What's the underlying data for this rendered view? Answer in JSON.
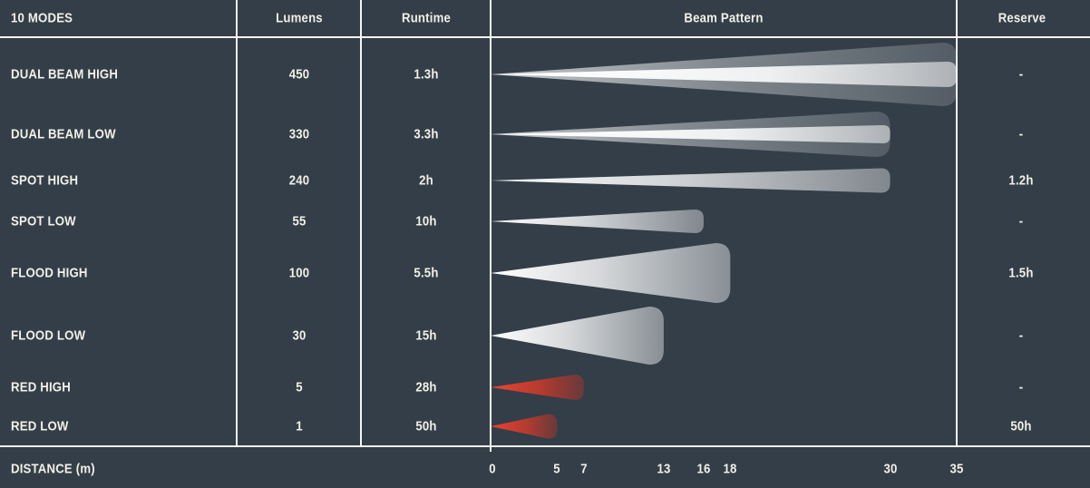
{
  "header": {
    "modes_label": "10 MODES",
    "columns": {
      "lumens": "Lumens",
      "runtime": "Runtime",
      "beam": "Beam Pattern",
      "reserve": "Reserve"
    }
  },
  "axis": {
    "label": "DISTANCE (m)",
    "ticks": [
      "0",
      "5",
      "7",
      "13",
      "16",
      "18",
      "30",
      "35"
    ]
  },
  "colors": {
    "background": "#333e48",
    "text": "#f2efe6",
    "line": "#f7f5ef",
    "beam_white": "#ffffff",
    "beam_red_bright": "#ee4431",
    "beam_red_mid": "#d03a2a",
    "beam_red_dark": "#b5352a"
  },
  "chart_data": {
    "type": "table",
    "title": "10 MODES",
    "columns": [
      "Lumens",
      "Runtime",
      "Beam Pattern",
      "Reserve"
    ],
    "xlabel": "DISTANCE (m)",
    "x_ticks": [
      0,
      5,
      7,
      13,
      16,
      18,
      30,
      35
    ],
    "xlim": [
      0,
      35
    ],
    "legend": "beam wedges start at 0 m and extend to the mode's max distance",
    "rows": [
      {
        "mode": "DUAL BEAM HIGH",
        "lumens": "450",
        "runtime": "1.3h",
        "reserve": "-",
        "beam_distance_m": 35,
        "beam_type": "dual",
        "beam_color": "white"
      },
      {
        "mode": "DUAL BEAM LOW",
        "lumens": "330",
        "runtime": "3.3h",
        "reserve": "-",
        "beam_distance_m": 30,
        "beam_type": "dual",
        "beam_color": "white"
      },
      {
        "mode": "SPOT HIGH",
        "lumens": "240",
        "runtime": "2h",
        "reserve": "1.2h",
        "beam_distance_m": 30,
        "beam_type": "spot",
        "beam_color": "white"
      },
      {
        "mode": "SPOT LOW",
        "lumens": "55",
        "runtime": "10h",
        "reserve": "-",
        "beam_distance_m": 16,
        "beam_type": "spot",
        "beam_color": "white"
      },
      {
        "mode": "FLOOD HIGH",
        "lumens": "100",
        "runtime": "5.5h",
        "reserve": "1.5h",
        "beam_distance_m": 18,
        "beam_type": "flood",
        "beam_color": "white"
      },
      {
        "mode": "FLOOD LOW",
        "lumens": "30",
        "runtime": "15h",
        "reserve": "-",
        "beam_distance_m": 13,
        "beam_type": "flood",
        "beam_color": "white"
      },
      {
        "mode": "RED HIGH",
        "lumens": "5",
        "runtime": "28h",
        "reserve": "-",
        "beam_distance_m": 7,
        "beam_type": "spot",
        "beam_color": "red"
      },
      {
        "mode": "RED LOW",
        "lumens": "1",
        "runtime": "50h",
        "reserve": "50h",
        "beam_distance_m": 5,
        "beam_type": "spot",
        "beam_color": "red"
      }
    ]
  }
}
